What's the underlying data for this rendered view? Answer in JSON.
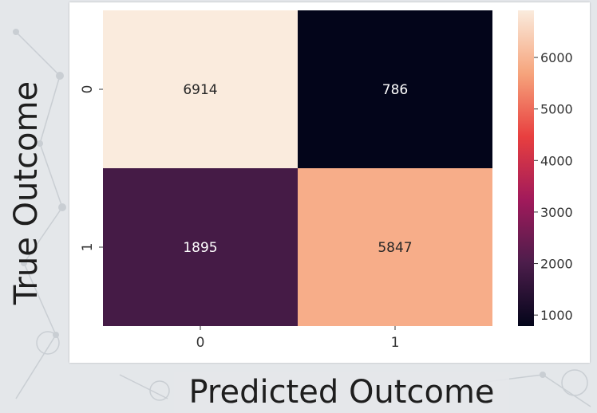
{
  "chart_data": {
    "type": "heatmap",
    "title": "",
    "xlabel": "Predicted Outcome",
    "ylabel": "True Outcome",
    "x_categories": [
      "0",
      "1"
    ],
    "y_categories": [
      "0",
      "1"
    ],
    "values": [
      [
        6914,
        786
      ],
      [
        1895,
        5847
      ]
    ],
    "colorbar": {
      "ticks": [
        1000,
        2000,
        3000,
        4000,
        5000,
        6000
      ],
      "range": [
        786,
        6914
      ],
      "colormap": "rocket",
      "colors": [
        "#03051a",
        "#4c1d4b",
        "#a11a5b",
        "#e83f3f",
        "#f6a47c",
        "#faebdd"
      ]
    }
  }
}
